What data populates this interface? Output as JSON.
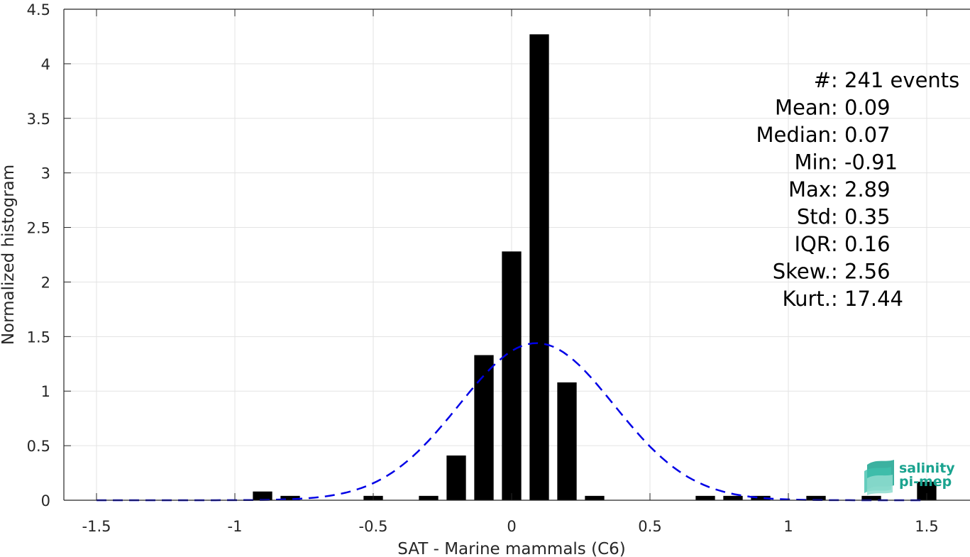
{
  "chart_data": {
    "type": "bar",
    "xlabel": "SAT - Marine mammals (C6)",
    "ylabel": "Normalized histogram",
    "xlim": [
      -1.6,
      1.6
    ],
    "ylim": [
      0,
      4.5
    ],
    "xticks": [
      -1.5,
      -1,
      -0.5,
      0,
      0.5,
      1,
      1.5
    ],
    "xtick_labels": [
      "-1.5",
      "-1",
      "-0.5",
      "0",
      "0.5",
      "1",
      "1.5"
    ],
    "yticks": [
      0,
      0.5,
      1,
      1.5,
      2,
      2.5,
      3,
      3.5,
      4,
      4.5
    ],
    "ytick_labels": [
      "0",
      "0.5",
      "1",
      "1.5",
      "2",
      "2.5",
      "3",
      "3.5",
      "4",
      "4.5"
    ],
    "grid": true,
    "bar_width": 0.07,
    "bar_color": "#000000",
    "bins": [
      {
        "x": -0.9,
        "y": 0.08
      },
      {
        "x": -0.8,
        "y": 0.04
      },
      {
        "x": -0.5,
        "y": 0.04
      },
      {
        "x": -0.3,
        "y": 0.04
      },
      {
        "x": -0.2,
        "y": 0.41
      },
      {
        "x": -0.1,
        "y": 1.33
      },
      {
        "x": 0.0,
        "y": 2.28
      },
      {
        "x": 0.1,
        "y": 4.27
      },
      {
        "x": 0.2,
        "y": 1.08
      },
      {
        "x": 0.3,
        "y": 0.04
      },
      {
        "x": 0.7,
        "y": 0.04
      },
      {
        "x": 0.8,
        "y": 0.04
      },
      {
        "x": 0.9,
        "y": 0.04
      },
      {
        "x": 1.1,
        "y": 0.04
      },
      {
        "x": 1.3,
        "y": 0.04
      },
      {
        "x": 1.5,
        "y": 0.17
      }
    ],
    "fit": {
      "type": "gaussian",
      "mean": 0.09,
      "std": 0.28,
      "peak": 1.44,
      "x_range": [
        -1.5,
        1.5
      ],
      "color": "#0000e6",
      "style": "dashed"
    },
    "stats": [
      {
        "label": "#  ",
        "value": ": 241 events"
      },
      {
        "label": "Mean ",
        "value": ": 0.09"
      },
      {
        "label": "Median ",
        "value": ": 0.07"
      },
      {
        "label": "Min ",
        "value": ": -0.91"
      },
      {
        "label": "Max ",
        "value": ": 2.89"
      },
      {
        "label": "Std ",
        "value": ": 0.35"
      },
      {
        "label": "IQR ",
        "value": ": 0.16"
      },
      {
        "label": "Skew. ",
        "value": ": 2.56"
      },
      {
        "label": "Kurt. ",
        "value": ": 17.44"
      }
    ]
  },
  "logo": {
    "line1": "salinity",
    "line2": "pi-mep",
    "color": "#1aa38f"
  }
}
